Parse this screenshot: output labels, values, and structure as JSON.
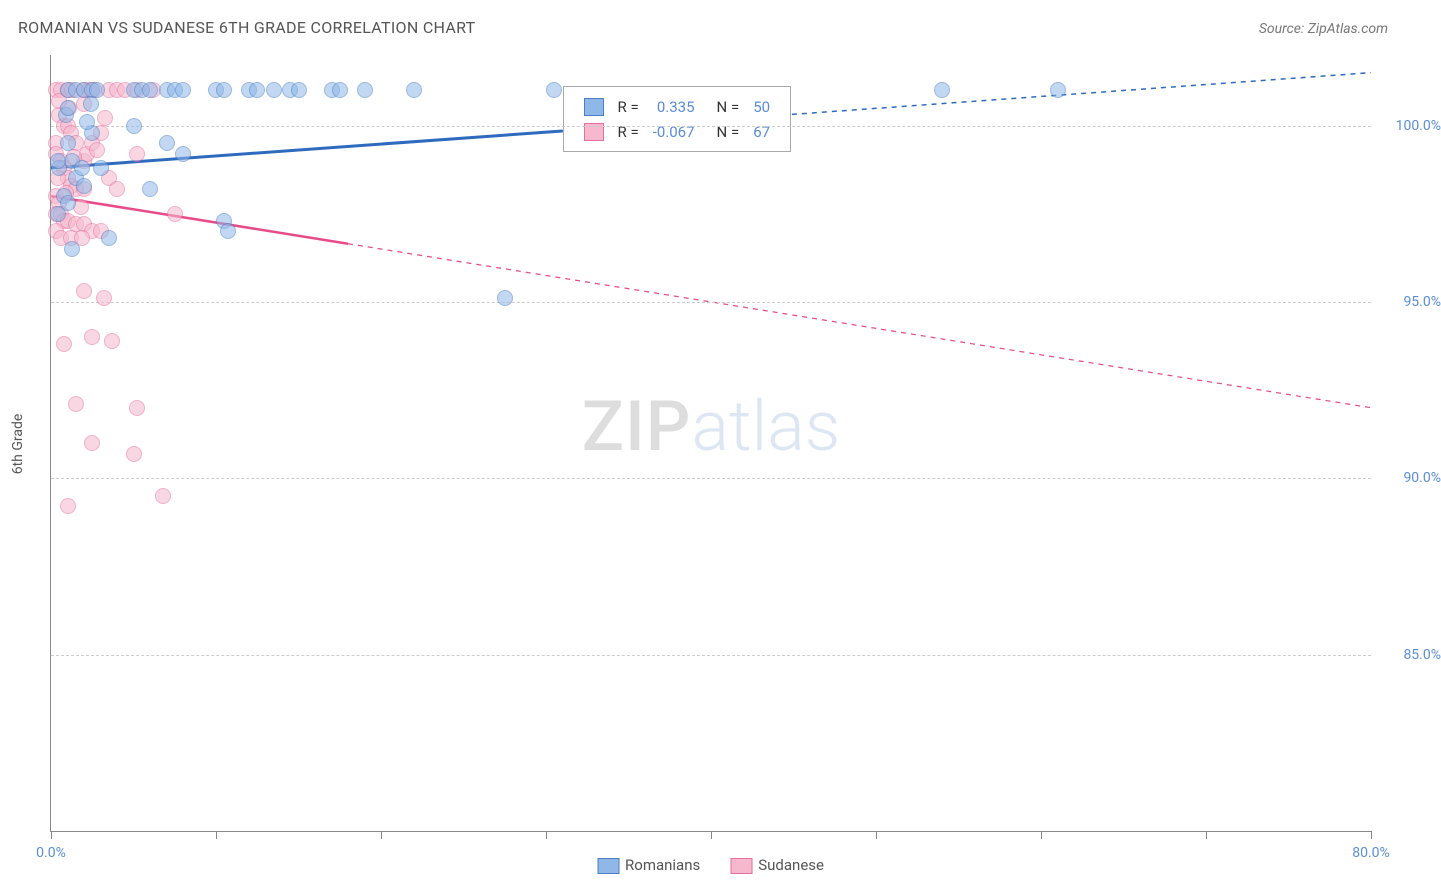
{
  "title": "ROMANIAN VS SUDANESE 6TH GRADE CORRELATION CHART",
  "source_label": "Source: ZipAtlas.com",
  "ylabel": "6th Grade",
  "watermark": {
    "part1": "ZIP",
    "part2": "atlas"
  },
  "chart": {
    "type": "scatter",
    "background_color": "#ffffff",
    "grid_color": "#cccccc",
    "axis_color": "#888888",
    "tick_label_color": "#5b8dd6",
    "axis_label_color": "#555555",
    "tick_label_fontsize": 14,
    "axis_label_fontsize": 14,
    "title_fontsize": 16,
    "title_color": "#555555",
    "xlim": [
      0,
      80
    ],
    "ylim": [
      80,
      102
    ],
    "x_ticks": [
      0,
      10,
      20,
      30,
      40,
      50,
      60,
      70,
      80
    ],
    "x_tick_labels": {
      "0": "0.0%",
      "80": "80.0%"
    },
    "y_gridlines": [
      85,
      90,
      95,
      100
    ],
    "y_tick_labels": {
      "85": "85.0%",
      "90": "90.0%",
      "95": "95.0%",
      "100": "100.0%"
    },
    "marker_radius": 8,
    "marker_opacity": 0.55,
    "marker_stroke_width": 1.2,
    "series": [
      {
        "name": "Romanians",
        "color_fill": "#8fb8e8",
        "color_stroke": "#4a7fc4",
        "points": [
          [
            1.0,
            101.0
          ],
          [
            1.5,
            101.0
          ],
          [
            2.0,
            101.0
          ],
          [
            2.5,
            101.0
          ],
          [
            2.8,
            101.0
          ],
          [
            5.0,
            101.0
          ],
          [
            5.5,
            101.0
          ],
          [
            6.0,
            101.0
          ],
          [
            7.0,
            101.0
          ],
          [
            7.5,
            101.0
          ],
          [
            8.0,
            101.0
          ],
          [
            10.0,
            101.0
          ],
          [
            10.5,
            101.0
          ],
          [
            12.0,
            101.0
          ],
          [
            12.5,
            101.0
          ],
          [
            13.5,
            101.0
          ],
          [
            14.5,
            101.0
          ],
          [
            15.0,
            101.0
          ],
          [
            17.0,
            101.0
          ],
          [
            17.5,
            101.0
          ],
          [
            19.0,
            101.0
          ],
          [
            22.0,
            101.0
          ],
          [
            30.5,
            101.0
          ],
          [
            54.0,
            101.0
          ],
          [
            61.0,
            101.0
          ],
          [
            5.0,
            100.0
          ],
          [
            7.0,
            99.5
          ],
          [
            8.0,
            99.2
          ],
          [
            1.0,
            99.5
          ],
          [
            1.3,
            99.0
          ],
          [
            0.5,
            98.8
          ],
          [
            1.5,
            98.5
          ],
          [
            2.0,
            98.3
          ],
          [
            0.8,
            98.0
          ],
          [
            1.0,
            97.8
          ],
          [
            1.9,
            98.8
          ],
          [
            6.0,
            98.2
          ],
          [
            3.0,
            98.8
          ],
          [
            2.5,
            99.8
          ],
          [
            2.2,
            100.1
          ],
          [
            0.4,
            99.0
          ],
          [
            0.4,
            97.5
          ],
          [
            10.5,
            97.3
          ],
          [
            10.7,
            97.0
          ],
          [
            3.5,
            96.8
          ],
          [
            1.3,
            96.5
          ],
          [
            27.5,
            95.1
          ],
          [
            0.9,
            100.3
          ],
          [
            1.0,
            100.5
          ],
          [
            2.4,
            100.6
          ]
        ],
        "trend": {
          "start": [
            0,
            98.8
          ],
          "end": [
            80,
            101.5
          ],
          "solid_until_x": 31,
          "color": "#2e6bbf",
          "width": 3
        },
        "r_value": "0.335",
        "n_value": "50"
      },
      {
        "name": "Sudanese",
        "color_fill": "#f5b8cc",
        "color_stroke": "#e76ea0",
        "points": [
          [
            0.3,
            101.0
          ],
          [
            0.6,
            101.0
          ],
          [
            1.0,
            101.0
          ],
          [
            1.3,
            101.0
          ],
          [
            2.0,
            101.0
          ],
          [
            2.3,
            101.0
          ],
          [
            2.6,
            101.0
          ],
          [
            3.5,
            101.0
          ],
          [
            4.0,
            101.0
          ],
          [
            4.5,
            101.0
          ],
          [
            5.2,
            101.0
          ],
          [
            6.2,
            101.0
          ],
          [
            0.5,
            100.3
          ],
          [
            0.8,
            100.0
          ],
          [
            1.0,
            100.0
          ],
          [
            1.2,
            99.8
          ],
          [
            1.5,
            99.5
          ],
          [
            0.3,
            99.5
          ],
          [
            0.3,
            99.2
          ],
          [
            0.6,
            99.0
          ],
          [
            0.8,
            98.8
          ],
          [
            1.0,
            98.5
          ],
          [
            1.2,
            98.3
          ],
          [
            1.5,
            98.2
          ],
          [
            2.0,
            98.2
          ],
          [
            0.3,
            98.0
          ],
          [
            0.5,
            97.8
          ],
          [
            0.3,
            97.5
          ],
          [
            0.6,
            97.5
          ],
          [
            0.8,
            97.3
          ],
          [
            1.0,
            97.3
          ],
          [
            1.5,
            97.2
          ],
          [
            2.0,
            97.2
          ],
          [
            2.5,
            97.0
          ],
          [
            3.0,
            97.0
          ],
          [
            0.3,
            97.0
          ],
          [
            0.6,
            96.8
          ],
          [
            1.2,
            96.8
          ],
          [
            1.9,
            96.8
          ],
          [
            2.0,
            99.0
          ],
          [
            2.2,
            99.2
          ],
          [
            2.5,
            99.5
          ],
          [
            2.8,
            99.3
          ],
          [
            3.0,
            99.8
          ],
          [
            3.3,
            100.2
          ],
          [
            3.5,
            98.5
          ],
          [
            4.0,
            98.2
          ],
          [
            5.2,
            99.2
          ],
          [
            7.5,
            97.5
          ],
          [
            2.0,
            95.3
          ],
          [
            3.2,
            95.1
          ],
          [
            2.5,
            94.0
          ],
          [
            3.7,
            93.9
          ],
          [
            0.8,
            93.8
          ],
          [
            1.5,
            92.1
          ],
          [
            5.2,
            92.0
          ],
          [
            2.5,
            91.0
          ],
          [
            5.0,
            90.7
          ],
          [
            6.8,
            89.5
          ],
          [
            1.0,
            89.2
          ],
          [
            2.0,
            100.6
          ],
          [
            1.1,
            100.5
          ],
          [
            0.5,
            100.7
          ],
          [
            0.4,
            98.5
          ],
          [
            1.4,
            99.1
          ],
          [
            1.8,
            97.7
          ],
          [
            0.9,
            98.1
          ]
        ],
        "trend": {
          "start": [
            0,
            98.0
          ],
          "end": [
            80,
            92.0
          ],
          "solid_until_x": 18,
          "color": "#e84b8a",
          "width": 2.5
        },
        "r_value": "-0.067",
        "n_value": "67"
      }
    ]
  },
  "stats_box": {
    "r_label": "R =",
    "n_label": "N =",
    "text_color": "#333333",
    "value_color": "#5b8dd6"
  },
  "legend": {
    "series1_label": "Romanians",
    "series2_label": "Sudanese"
  }
}
